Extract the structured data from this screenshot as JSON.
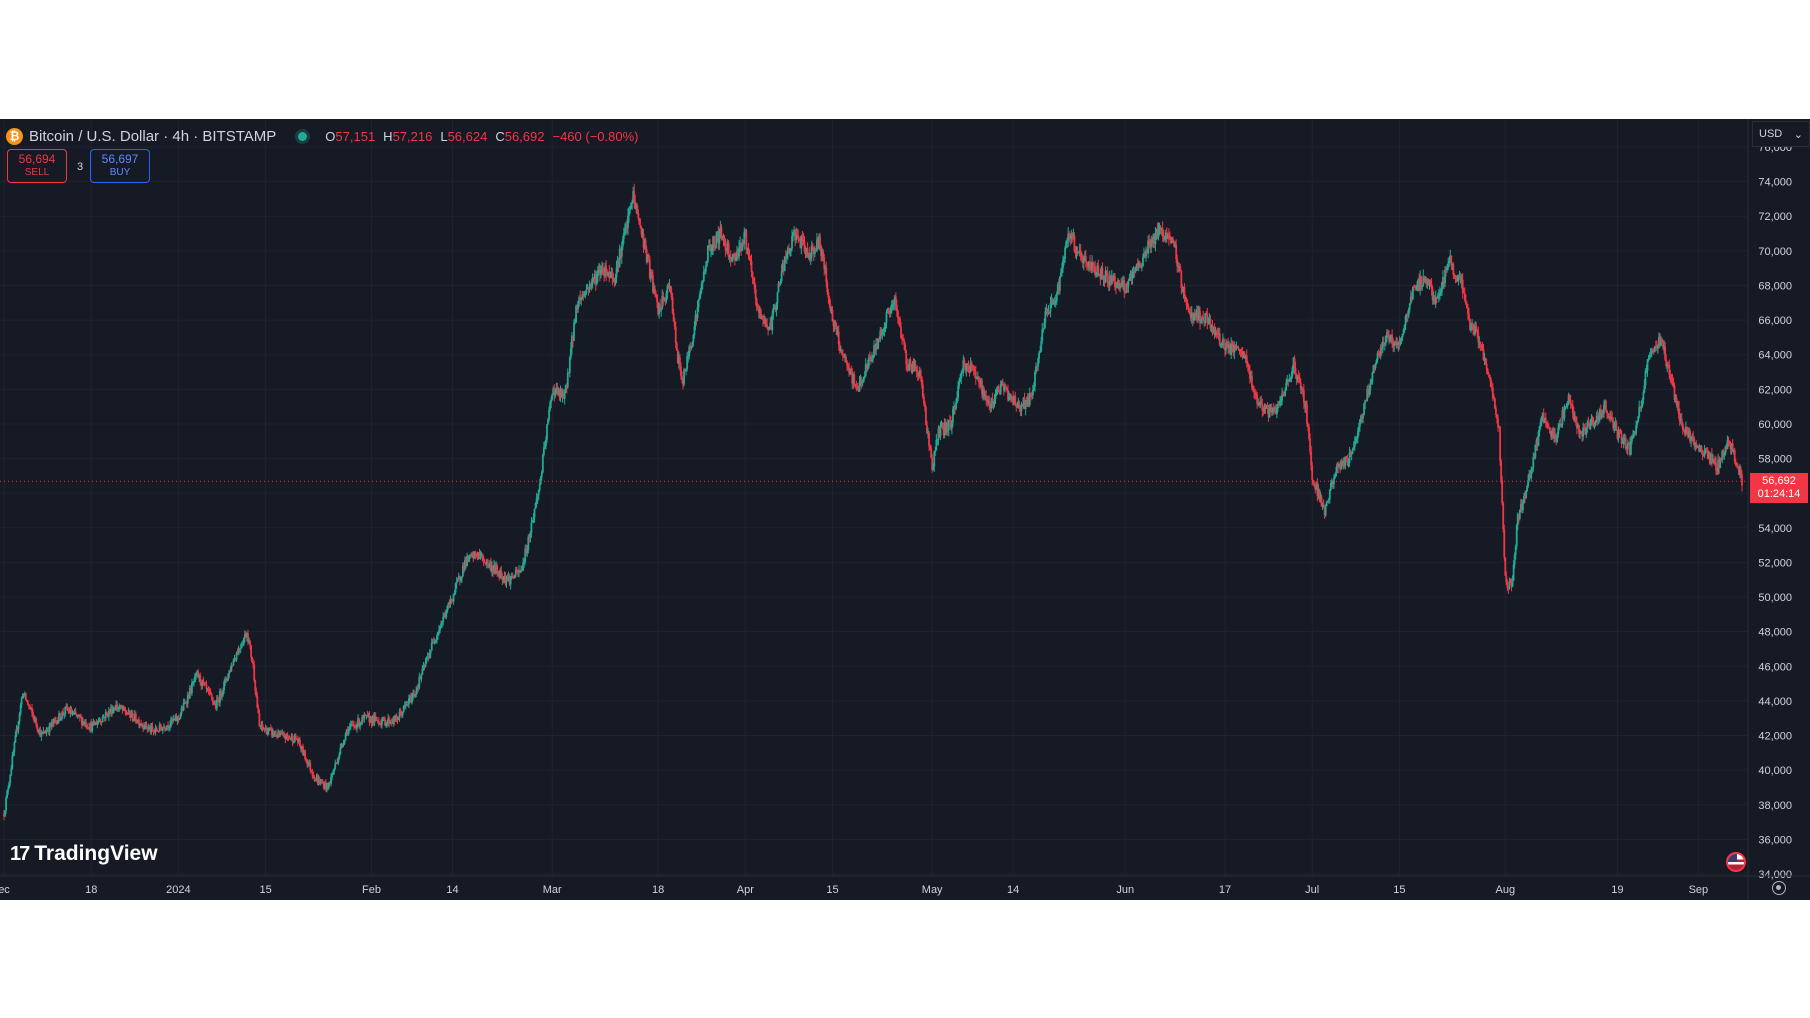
{
  "header": {
    "symbol_icon": "bitcoin-icon",
    "symbol_glyph": "₿",
    "title": "Bitcoin / U.S. Dollar · 4h · BITSTAMP",
    "ohlc": [
      {
        "key": "O",
        "value": "57,151"
      },
      {
        "key": "H",
        "value": "57,216"
      },
      {
        "key": "L",
        "value": "56,624"
      },
      {
        "key": "C",
        "value": "56,692"
      }
    ],
    "change": "−460 (−0.80%)"
  },
  "trade": {
    "sell_price": "56,694",
    "sell_label": "SELL",
    "spread": "3",
    "buy_price": "56,697",
    "buy_label": "BUY"
  },
  "currency": "USD",
  "currency_caret": "⌄",
  "last_price": {
    "price": "56,692",
    "countdown": "01:24:14",
    "value": 56692
  },
  "branding": {
    "mark": "17",
    "name": "TradingView"
  },
  "colors": {
    "up": "#22ab94",
    "down": "#f23645",
    "background": "#161a25",
    "text": "#d1d4dc",
    "grid": "#1f2330"
  },
  "chart_data": {
    "type": "candlestick",
    "symbol": "Bitcoin / U.S. Dollar",
    "interval": "4h",
    "exchange": "BITSTAMP",
    "ylim": [
      34000,
      76000
    ],
    "y_ticks": [
      34000,
      36000,
      38000,
      40000,
      42000,
      44000,
      46000,
      48000,
      50000,
      52000,
      54000,
      56000,
      58000,
      60000,
      62000,
      64000,
      66000,
      68000,
      70000,
      72000,
      74000,
      76000
    ],
    "y_tick_labels": [
      "34,000",
      "36,000",
      "38,000",
      "40,000",
      "42,000",
      "44,000",
      "46,000",
      "48,000",
      "50,000",
      "52,000",
      "54,000",
      "56,000",
      "58,000",
      "60,000",
      "62,000",
      "64,000",
      "66,000",
      "68,000",
      "70,000",
      "72,000",
      "74,000",
      "76,000"
    ],
    "x_ticks": [
      {
        "label": "ec",
        "day": 0
      },
      {
        "label": "18",
        "day": 14
      },
      {
        "label": "2024",
        "day": 28
      },
      {
        "label": "15",
        "day": 42
      },
      {
        "label": "Feb",
        "day": 59
      },
      {
        "label": "14",
        "day": 72
      },
      {
        "label": "Mar",
        "day": 88
      },
      {
        "label": "18",
        "day": 105
      },
      {
        "label": "Apr",
        "day": 119
      },
      {
        "label": "15",
        "day": 133
      },
      {
        "label": "May",
        "day": 149
      },
      {
        "label": "14",
        "day": 162
      },
      {
        "label": "Jun",
        "day": 180
      },
      {
        "label": "17",
        "day": 196
      },
      {
        "label": "Jul",
        "day": 210
      },
      {
        "label": "15",
        "day": 224
      },
      {
        "label": "Aug",
        "day": 241
      },
      {
        "label": "19",
        "day": 259
      },
      {
        "label": "Sep",
        "day": 272
      }
    ],
    "x_range_days": [
      0,
      279
    ],
    "price_path": [
      [
        0,
        37500
      ],
      [
        3,
        44500
      ],
      [
        6,
        42000
      ],
      [
        10,
        43500
      ],
      [
        14,
        42500
      ],
      [
        18,
        43700
      ],
      [
        21,
        43000
      ],
      [
        24,
        42200
      ],
      [
        28,
        43000
      ],
      [
        31,
        45500
      ],
      [
        34,
        43700
      ],
      [
        37,
        46500
      ],
      [
        39,
        48000
      ],
      [
        40,
        46000
      ],
      [
        41,
        42500
      ],
      [
        44,
        42000
      ],
      [
        47,
        41800
      ],
      [
        50,
        39500
      ],
      [
        52,
        39000
      ],
      [
        55,
        42300
      ],
      [
        58,
        43000
      ],
      [
        61,
        42800
      ],
      [
        63,
        42900
      ],
      [
        66,
        44500
      ],
      [
        69,
        47500
      ],
      [
        72,
        50000
      ],
      [
        74,
        52000
      ],
      [
        76,
        52500
      ],
      [
        78,
        51800
      ],
      [
        81,
        51000
      ],
      [
        83,
        51500
      ],
      [
        84,
        53000
      ],
      [
        86,
        56500
      ],
      [
        88,
        62000
      ],
      [
        90,
        61500
      ],
      [
        92,
        67000
      ],
      [
        94,
        68000
      ],
      [
        96,
        69000
      ],
      [
        98,
        68500
      ],
      [
        100,
        71500
      ],
      [
        101,
        73200
      ],
      [
        103,
        70000
      ],
      [
        105,
        66500
      ],
      [
        107,
        68000
      ],
      [
        108,
        64000
      ],
      [
        109,
        62500
      ],
      [
        111,
        66000
      ],
      [
        113,
        70000
      ],
      [
        115,
        71000
      ],
      [
        117,
        69500
      ],
      [
        119,
        70800
      ],
      [
        121,
        66500
      ],
      [
        123,
        65500
      ],
      [
        125,
        69000
      ],
      [
        127,
        71000
      ],
      [
        129,
        69800
      ],
      [
        131,
        70500
      ],
      [
        133,
        66000
      ],
      [
        135,
        63500
      ],
      [
        137,
        62000
      ],
      [
        140,
        64500
      ],
      [
        142,
        66500
      ],
      [
        143,
        67000
      ],
      [
        145,
        63500
      ],
      [
        147,
        63000
      ],
      [
        149,
        57500
      ],
      [
        150,
        59500
      ],
      [
        152,
        60000
      ],
      [
        154,
        63500
      ],
      [
        156,
        63000
      ],
      [
        158,
        61000
      ],
      [
        160,
        62200
      ],
      [
        163,
        61000
      ],
      [
        165,
        61500
      ],
      [
        167,
        66000
      ],
      [
        169,
        67500
      ],
      [
        171,
        71000
      ],
      [
        173,
        69500
      ],
      [
        175,
        69000
      ],
      [
        177,
        68500
      ],
      [
        180,
        67800
      ],
      [
        182,
        69000
      ],
      [
        184,
        70500
      ],
      [
        186,
        71200
      ],
      [
        188,
        70000
      ],
      [
        190,
        66500
      ],
      [
        193,
        66000
      ],
      [
        196,
        64500
      ],
      [
        199,
        64000
      ],
      [
        201,
        61500
      ],
      [
        203,
        60500
      ],
      [
        205,
        61200
      ],
      [
        207,
        63500
      ],
      [
        209,
        61000
      ],
      [
        210,
        57000
      ],
      [
        212,
        55000
      ],
      [
        214,
        57500
      ],
      [
        216,
        58000
      ],
      [
        218,
        60500
      ],
      [
        220,
        63500
      ],
      [
        222,
        65000
      ],
      [
        224,
        64500
      ],
      [
        226,
        67500
      ],
      [
        228,
        68500
      ],
      [
        230,
        67000
      ],
      [
        232,
        69500
      ],
      [
        234,
        68000
      ],
      [
        235,
        66000
      ],
      [
        236,
        65500
      ],
      [
        237,
        64500
      ],
      [
        238,
        63500
      ],
      [
        239,
        61500
      ],
      [
        240,
        59500
      ],
      [
        241,
        51000
      ],
      [
        242,
        50500
      ],
      [
        243,
        54500
      ],
      [
        245,
        57000
      ],
      [
        247,
        60500
      ],
      [
        249,
        59000
      ],
      [
        251,
        61500
      ],
      [
        253,
        59500
      ],
      [
        255,
        60000
      ],
      [
        257,
        61000
      ],
      [
        259,
        59500
      ],
      [
        261,
        58500
      ],
      [
        262,
        60000
      ],
      [
        263,
        61500
      ],
      [
        264,
        64000
      ],
      [
        266,
        64800
      ],
      [
        267,
        63500
      ],
      [
        268,
        62000
      ],
      [
        269,
        60500
      ],
      [
        270,
        59500
      ],
      [
        271,
        59000
      ],
      [
        272,
        58500
      ],
      [
        274,
        58000
      ],
      [
        275,
        57500
      ],
      [
        277,
        59000
      ],
      [
        279,
        56692
      ]
    ]
  }
}
